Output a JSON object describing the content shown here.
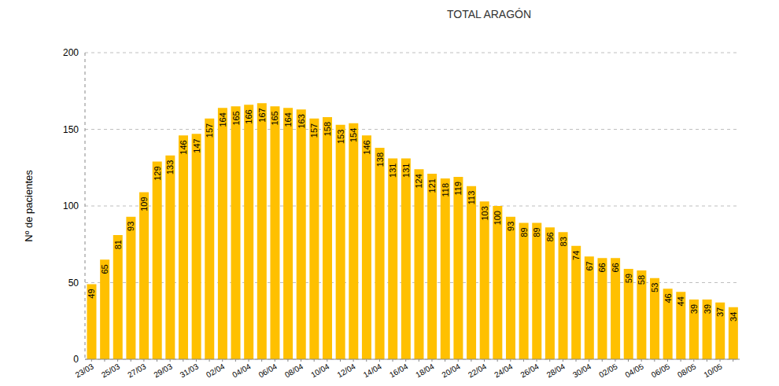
{
  "chart_data": {
    "type": "bar",
    "title": "TOTAL ARAGÓN",
    "y_label": "Nº de pacientes",
    "categories": [
      "23/03",
      null,
      "25/03",
      null,
      "27/03",
      null,
      "29/03",
      null,
      "31/03",
      null,
      "02/04",
      null,
      "04/04",
      null,
      "06/04",
      null,
      "08/04",
      null,
      "10/04",
      null,
      "12/04",
      null,
      "14/04",
      null,
      "16/04",
      null,
      "18/04",
      null,
      "20/04",
      null,
      "22/04",
      null,
      "24/04",
      null,
      "26/04",
      null,
      "28/04",
      null,
      "30/04",
      null,
      "02/05",
      null,
      "04/05",
      null,
      "06/05",
      null,
      "08/05",
      null,
      "10/05",
      null
    ],
    "values": [
      49,
      65,
      81,
      93,
      109,
      129,
      133,
      146,
      147,
      157,
      164,
      165,
      166,
      167,
      165,
      164,
      163,
      157,
      158,
      153,
      154,
      146,
      138,
      131,
      131,
      124,
      121,
      118,
      119,
      113,
      103,
      100,
      93,
      89,
      89,
      86,
      83,
      74,
      67,
      66,
      66,
      59,
      58,
      53,
      46,
      44,
      39,
      39,
      37,
      34
    ],
    "color": "#FFC000",
    "ylim": [
      0,
      200
    ],
    "yticks": [
      0,
      50,
      100,
      150,
      200
    ],
    "grid": true,
    "data_labels": true
  }
}
